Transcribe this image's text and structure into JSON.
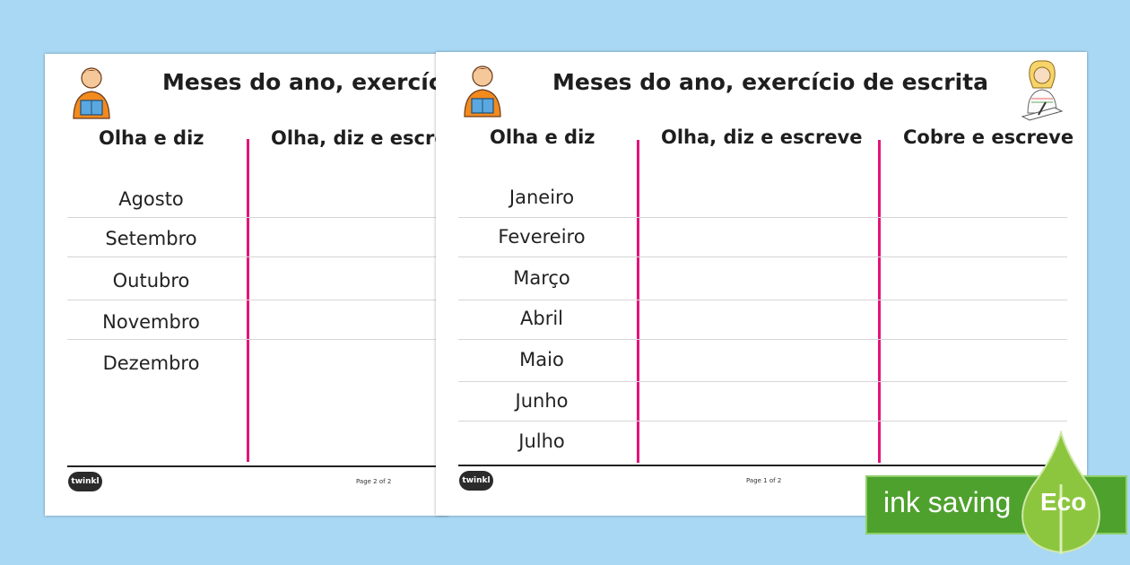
{
  "back_sheet": {
    "title": "Meses do ano, exercício de escrita",
    "columns": [
      "Olha e diz",
      "Olha, diz e escreve"
    ],
    "months": [
      "Agosto",
      "Setembro",
      "Outubro",
      "Novembro",
      "Dezembro"
    ],
    "page_label": "Page 2 of 2",
    "logo": "twinkl"
  },
  "front_sheet": {
    "title": "Meses do ano, exercício de escrita",
    "columns": [
      "Olha e diz",
      "Olha, diz e escreve",
      "Cobre e escreve"
    ],
    "months": [
      "Janeiro",
      "Fevereiro",
      "Março",
      "Abril",
      "Maio",
      "Junho",
      "Julho"
    ],
    "page_label": "Page 1 of 2",
    "logo": "twinkl"
  },
  "badge": {
    "text": "ink saving",
    "label": "Eco"
  },
  "colors": {
    "background": "#a8d8f4",
    "divider": "#e5137c",
    "badge_green": "#4fa12e"
  }
}
